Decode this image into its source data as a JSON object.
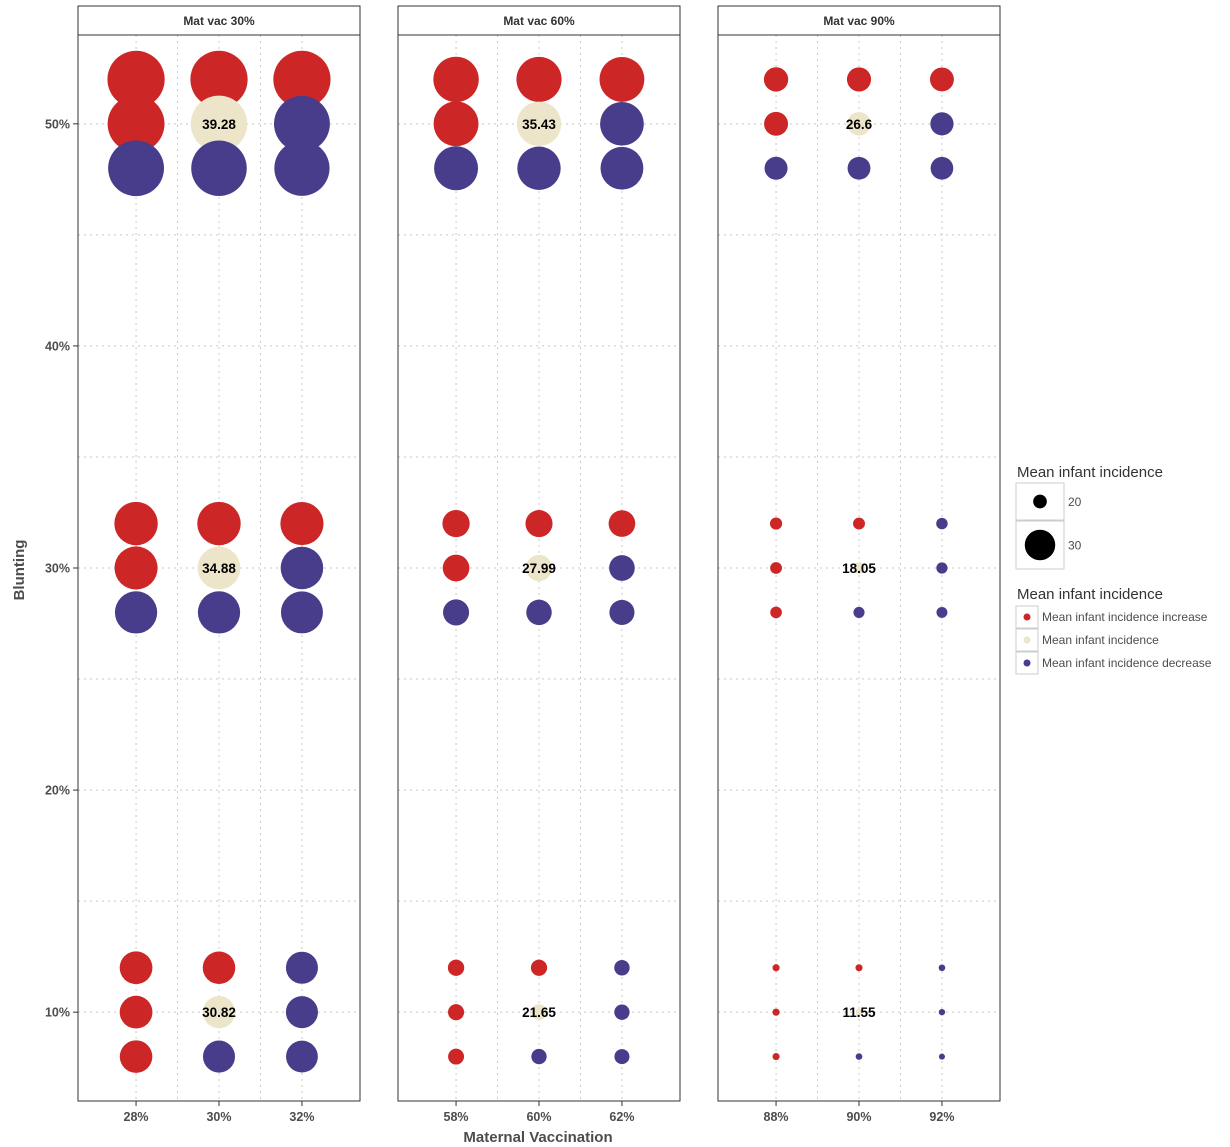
{
  "chart_data": {
    "type": "scatter",
    "subtype": "faceted-bubble",
    "xlabel": "Maternal Vaccination",
    "ylabel": "Blunting",
    "ylim": [
      6,
      54
    ],
    "y_ticks": [
      10,
      20,
      30,
      40,
      50
    ],
    "y_tick_labels": [
      "10%",
      "20%",
      "30%",
      "40%",
      "50%"
    ],
    "grid": true,
    "legend_placement": "right",
    "colors": {
      "increase": "#cd2626",
      "baseline": "#ede5c9",
      "decrease": "#483d8b",
      "size_key": "#000000"
    },
    "size_legend": {
      "title": "Mean infant incidence",
      "entries": [
        {
          "value": 20,
          "label": "20"
        },
        {
          "value": 30,
          "label": "30"
        }
      ]
    },
    "color_legend": {
      "title": "Mean infant incidence",
      "entries": [
        {
          "key": "increase",
          "label": "Mean infant incidence increase"
        },
        {
          "key": "baseline",
          "label": "Mean infant incidence"
        },
        {
          "key": "decrease",
          "label": "Mean infant incidence decrease"
        }
      ]
    },
    "facets": [
      {
        "title": "Mat vac 30%",
        "x_ticks": [
          28,
          30,
          32
        ],
        "x_tick_labels": [
          "28%",
          "30%",
          "32%"
        ],
        "xlim": [
          26.6,
          33.4
        ],
        "points": [
          {
            "x": 28,
            "y": 52,
            "size": 39.5,
            "type": "increase"
          },
          {
            "x": 30,
            "y": 52,
            "size": 39.5,
            "type": "increase"
          },
          {
            "x": 32,
            "y": 52,
            "size": 39.5,
            "type": "increase"
          },
          {
            "x": 28,
            "y": 50,
            "size": 39.4,
            "type": "increase"
          },
          {
            "x": 30,
            "y": 50,
            "size": 39.28,
            "type": "baseline",
            "label": "39.28"
          },
          {
            "x": 32,
            "y": 50,
            "size": 39.1,
            "type": "decrease"
          },
          {
            "x": 28,
            "y": 48,
            "size": 39.1,
            "type": "decrease"
          },
          {
            "x": 30,
            "y": 48,
            "size": 39.0,
            "type": "decrease"
          },
          {
            "x": 32,
            "y": 48,
            "size": 38.9,
            "type": "decrease"
          },
          {
            "x": 28,
            "y": 32,
            "size": 35.1,
            "type": "increase"
          },
          {
            "x": 30,
            "y": 32,
            "size": 35.1,
            "type": "increase"
          },
          {
            "x": 32,
            "y": 32,
            "size": 35.0,
            "type": "increase"
          },
          {
            "x": 28,
            "y": 30,
            "size": 35.0,
            "type": "increase"
          },
          {
            "x": 30,
            "y": 30,
            "size": 34.88,
            "type": "baseline",
            "label": "34.88"
          },
          {
            "x": 32,
            "y": 30,
            "size": 34.8,
            "type": "decrease"
          },
          {
            "x": 28,
            "y": 28,
            "size": 34.7,
            "type": "decrease"
          },
          {
            "x": 30,
            "y": 28,
            "size": 34.7,
            "type": "decrease"
          },
          {
            "x": 32,
            "y": 28,
            "size": 34.6,
            "type": "decrease"
          },
          {
            "x": 28,
            "y": 12,
            "size": 31.0,
            "type": "increase"
          },
          {
            "x": 30,
            "y": 12,
            "size": 30.9,
            "type": "increase"
          },
          {
            "x": 32,
            "y": 12,
            "size": 30.7,
            "type": "decrease"
          },
          {
            "x": 28,
            "y": 10,
            "size": 31.0,
            "type": "increase"
          },
          {
            "x": 30,
            "y": 10,
            "size": 30.82,
            "type": "baseline",
            "label": "30.82"
          },
          {
            "x": 32,
            "y": 10,
            "size": 30.7,
            "type": "decrease"
          },
          {
            "x": 28,
            "y": 8,
            "size": 30.9,
            "type": "increase"
          },
          {
            "x": 30,
            "y": 8,
            "size": 30.7,
            "type": "decrease"
          },
          {
            "x": 32,
            "y": 8,
            "size": 30.6,
            "type": "decrease"
          }
        ]
      },
      {
        "title": "Mat vac 60%",
        "x_ticks": [
          58,
          60,
          62
        ],
        "x_tick_labels": [
          "58%",
          "60%",
          "62%"
        ],
        "xlim": [
          56.6,
          63.4
        ],
        "points": [
          {
            "x": 58,
            "y": 52,
            "size": 35.8,
            "type": "increase"
          },
          {
            "x": 60,
            "y": 52,
            "size": 35.7,
            "type": "increase"
          },
          {
            "x": 62,
            "y": 52,
            "size": 35.6,
            "type": "increase"
          },
          {
            "x": 58,
            "y": 50,
            "size": 35.6,
            "type": "increase"
          },
          {
            "x": 60,
            "y": 50,
            "size": 35.43,
            "type": "baseline",
            "label": "35.43"
          },
          {
            "x": 62,
            "y": 50,
            "size": 35.2,
            "type": "decrease"
          },
          {
            "x": 58,
            "y": 48,
            "size": 35.3,
            "type": "decrease"
          },
          {
            "x": 60,
            "y": 48,
            "size": 35.1,
            "type": "decrease"
          },
          {
            "x": 62,
            "y": 48,
            "size": 34.9,
            "type": "decrease"
          },
          {
            "x": 58,
            "y": 32,
            "size": 28.5,
            "type": "increase"
          },
          {
            "x": 60,
            "y": 32,
            "size": 28.4,
            "type": "increase"
          },
          {
            "x": 62,
            "y": 32,
            "size": 28.2,
            "type": "increase"
          },
          {
            "x": 58,
            "y": 30,
            "size": 28.2,
            "type": "increase"
          },
          {
            "x": 60,
            "y": 30,
            "size": 27.99,
            "type": "baseline",
            "label": "27.99"
          },
          {
            "x": 62,
            "y": 30,
            "size": 27.7,
            "type": "decrease"
          },
          {
            "x": 58,
            "y": 28,
            "size": 27.9,
            "type": "decrease"
          },
          {
            "x": 60,
            "y": 28,
            "size": 27.6,
            "type": "decrease"
          },
          {
            "x": 62,
            "y": 28,
            "size": 27.4,
            "type": "decrease"
          },
          {
            "x": 58,
            "y": 12,
            "size": 22.1,
            "type": "increase"
          },
          {
            "x": 60,
            "y": 12,
            "size": 22.0,
            "type": "increase"
          },
          {
            "x": 62,
            "y": 12,
            "size": 21.4,
            "type": "decrease"
          },
          {
            "x": 58,
            "y": 10,
            "size": 21.9,
            "type": "increase"
          },
          {
            "x": 60,
            "y": 10,
            "size": 21.65,
            "type": "baseline",
            "label": "21.65"
          },
          {
            "x": 62,
            "y": 10,
            "size": 21.3,
            "type": "decrease"
          },
          {
            "x": 58,
            "y": 8,
            "size": 21.8,
            "type": "increase"
          },
          {
            "x": 60,
            "y": 8,
            "size": 21.3,
            "type": "decrease"
          },
          {
            "x": 62,
            "y": 8,
            "size": 21.1,
            "type": "decrease"
          }
        ]
      },
      {
        "title": "Mat vac 90%",
        "x_ticks": [
          88,
          90,
          92
        ],
        "x_tick_labels": [
          "88%",
          "90%",
          "92%"
        ],
        "xlim": [
          86.6,
          93.4
        ],
        "points": [
          {
            "x": 88,
            "y": 52,
            "size": 27.0,
            "type": "increase"
          },
          {
            "x": 90,
            "y": 52,
            "size": 26.9,
            "type": "increase"
          },
          {
            "x": 92,
            "y": 52,
            "size": 26.8,
            "type": "increase"
          },
          {
            "x": 88,
            "y": 50,
            "size": 26.8,
            "type": "increase"
          },
          {
            "x": 90,
            "y": 50,
            "size": 26.6,
            "type": "baseline",
            "label": "26.6"
          },
          {
            "x": 92,
            "y": 50,
            "size": 26.4,
            "type": "decrease"
          },
          {
            "x": 88,
            "y": 48,
            "size": 26.3,
            "type": "decrease"
          },
          {
            "x": 90,
            "y": 48,
            "size": 26.2,
            "type": "decrease"
          },
          {
            "x": 92,
            "y": 48,
            "size": 26.1,
            "type": "decrease"
          },
          {
            "x": 88,
            "y": 32,
            "size": 18.6,
            "type": "increase"
          },
          {
            "x": 90,
            "y": 32,
            "size": 18.4,
            "type": "increase"
          },
          {
            "x": 92,
            "y": 32,
            "size": 17.9,
            "type": "decrease"
          },
          {
            "x": 88,
            "y": 30,
            "size": 18.3,
            "type": "increase"
          },
          {
            "x": 90,
            "y": 30,
            "size": 18.05,
            "type": "baseline",
            "label": "18.05"
          },
          {
            "x": 92,
            "y": 30,
            "size": 17.7,
            "type": "decrease"
          },
          {
            "x": 88,
            "y": 28,
            "size": 18.1,
            "type": "increase"
          },
          {
            "x": 90,
            "y": 28,
            "size": 17.6,
            "type": "decrease"
          },
          {
            "x": 92,
            "y": 28,
            "size": 17.4,
            "type": "decrease"
          },
          {
            "x": 88,
            "y": 12,
            "size": 12.3,
            "type": "increase"
          },
          {
            "x": 90,
            "y": 12,
            "size": 12.1,
            "type": "increase"
          },
          {
            "x": 92,
            "y": 12,
            "size": 11.1,
            "type": "decrease"
          },
          {
            "x": 88,
            "y": 10,
            "size": 12.2,
            "type": "increase"
          },
          {
            "x": 90,
            "y": 10,
            "size": 11.55,
            "type": "baseline",
            "label": "11.55"
          },
          {
            "x": 92,
            "y": 10,
            "size": 10.6,
            "type": "decrease"
          },
          {
            "x": 88,
            "y": 8,
            "size": 12.1,
            "type": "increase"
          },
          {
            "x": 90,
            "y": 8,
            "size": 11.2,
            "type": "decrease"
          },
          {
            "x": 92,
            "y": 8,
            "size": 9.8,
            "type": "decrease"
          }
        ]
      }
    ]
  }
}
